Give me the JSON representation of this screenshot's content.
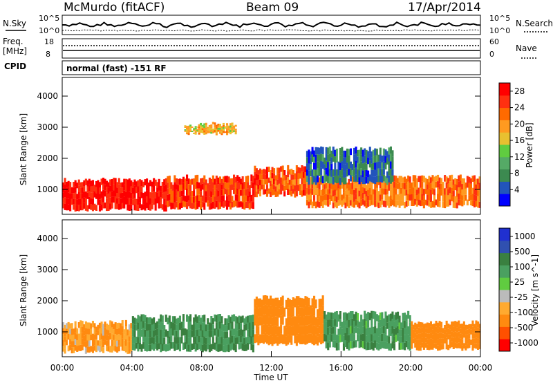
{
  "header": {
    "station": "McMurdo (fitACF)",
    "beam": "Beam 09",
    "date": "17/Apr/2014"
  },
  "noise_panel": {
    "left_label": "N.Sky",
    "right_label": "N.Search",
    "left_top": "10^5",
    "left_bottom": "10^0",
    "right_top": "10^5",
    "right_bottom": "10^0"
  },
  "freq_panel": {
    "left_label_1": "Freq.",
    "left_label_2": "[MHz]",
    "right_label": "Nave",
    "left_top": "18",
    "left_bottom": "8",
    "right_top": "60",
    "right_bottom": "0"
  },
  "cpid_panel": {
    "label": "CPID",
    "text": "normal (fast) -151 RF"
  },
  "colors": {
    "power": [
      "#0000ff",
      "#2255bb",
      "#3c8a50",
      "#55aa66",
      "#60cc40",
      "#e8c030",
      "#ff9a20",
      "#ff6a00",
      "#ff3010",
      "#ff0000"
    ],
    "velocity": [
      "#ff0000",
      "#ff5000",
      "#ff8a10",
      "#ffaa30",
      "#bbbbbb",
      "#60cc40",
      "#4aa060",
      "#3a8040",
      "#3050b0",
      "#2030d0"
    ]
  },
  "chart_data": [
    {
      "type": "heatmap",
      "title": "Power",
      "xlabel": "Time UT",
      "ylabel": "Slant Range [km]",
      "x_ticks": [
        "00:00",
        "04:00",
        "08:00",
        "12:00",
        "16:00",
        "20:00",
        "00:00"
      ],
      "y_ticks": [
        "1000",
        "2000",
        "3000",
        "4000"
      ],
      "ylim": [
        200,
        4600
      ],
      "xlim_hours": [
        0,
        24
      ],
      "colorbar_label": "Power [dB]",
      "colorbar_ticks": [
        "4",
        "8",
        "12",
        "16",
        "20",
        "24",
        "28"
      ],
      "colorbar_range": [
        0,
        30
      ],
      "bands": [
        {
          "t_start": 0,
          "t_end": 6,
          "r_low": 350,
          "r_high": 1300,
          "value": 28
        },
        {
          "t_start": 6,
          "t_end": 11,
          "r_low": 400,
          "r_high": 1400,
          "value": 26
        },
        {
          "t_start": 11,
          "t_end": 14,
          "r_low": 800,
          "r_high": 1700,
          "value": 24
        },
        {
          "t_start": 14,
          "t_end": 24,
          "r_low": 450,
          "r_high": 1400,
          "value": 22
        },
        {
          "t_start": 14,
          "t_end": 19,
          "r_low": 1200,
          "r_high": 2300,
          "value": 6
        },
        {
          "t_start": 7,
          "t_end": 10,
          "r_low": 2800,
          "r_high": 3100,
          "value": 18
        }
      ]
    },
    {
      "type": "heatmap",
      "title": "Velocity",
      "xlabel": "Time UT",
      "ylabel": "Slant Range [km]",
      "x_ticks": [
        "00:00",
        "04:00",
        "08:00",
        "12:00",
        "16:00",
        "20:00",
        "00:00"
      ],
      "y_ticks": [
        "1000",
        "2000",
        "3000",
        "4000"
      ],
      "ylim": [
        200,
        4600
      ],
      "xlim_hours": [
        0,
        24
      ],
      "colorbar_label": "Velocity [m s^-1]",
      "colorbar_ticks": [
        "1000",
        "500",
        "100",
        "25",
        "-25",
        "-100",
        "-500",
        "-1000"
      ],
      "bands": [
        {
          "t_start": 0,
          "t_end": 4,
          "r_low": 350,
          "r_high": 1300,
          "value": -100
        },
        {
          "t_start": 4,
          "t_end": 11,
          "r_low": 400,
          "r_high": 1500,
          "value": 100
        },
        {
          "t_start": 11,
          "t_end": 15,
          "r_low": 600,
          "r_high": 2100,
          "value": -300
        },
        {
          "t_start": 15,
          "t_end": 20,
          "r_low": 450,
          "r_high": 1600,
          "value": 80
        },
        {
          "t_start": 20,
          "t_end": 24,
          "r_low": 450,
          "r_high": 1300,
          "value": -200
        }
      ]
    }
  ]
}
